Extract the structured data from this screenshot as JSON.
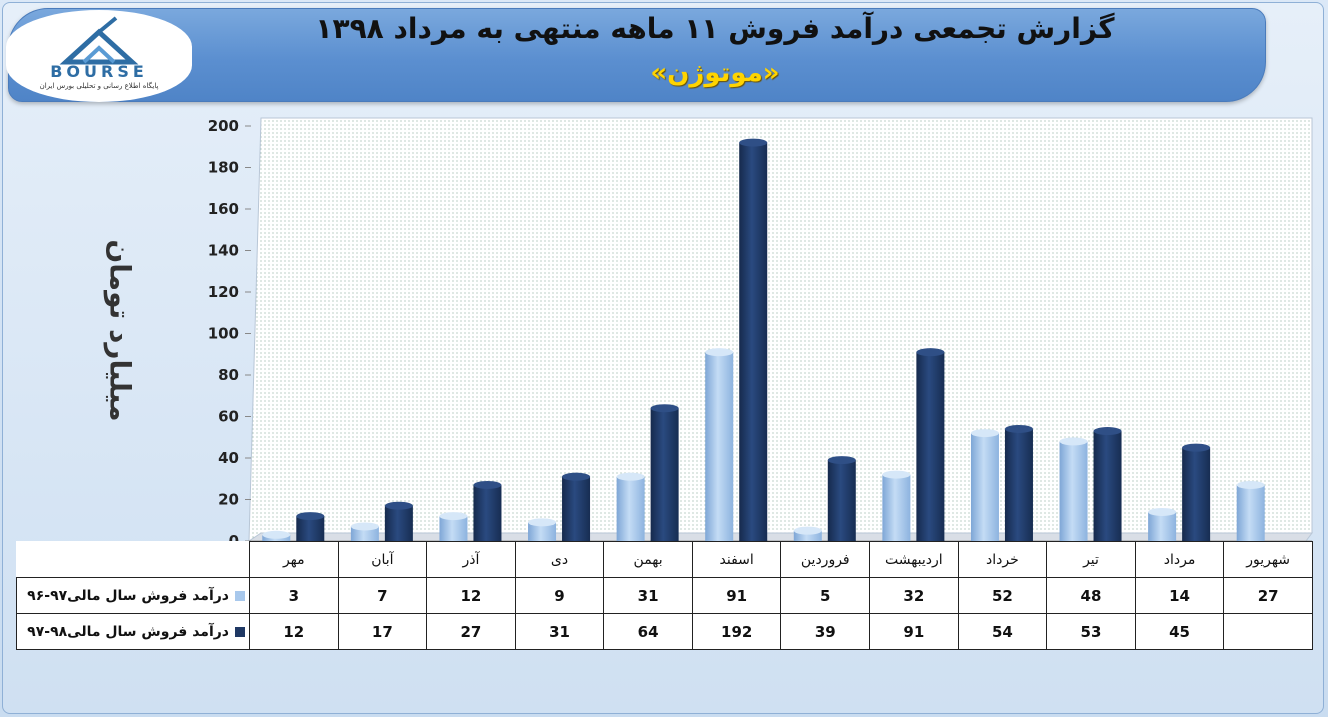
{
  "header": {
    "title": "گزارش تجمعی درآمد فروش ۱۱ ماهه منتهی به مرداد ۱۳۹۸",
    "subtitle": "«موتوژن»"
  },
  "logo": {
    "name": "BOURSE",
    "tagline": "پایگاه اطلاع رسانی و تحلیلی بورس ایران"
  },
  "chart_data": {
    "type": "bar",
    "title": "گزارش تجمعی درآمد فروش ۱۱ ماهه منتهی به مرداد ۱۳۹۸",
    "subtitle": "«موتوژن»",
    "ylabel": "میلیارد تومان",
    "ylim": [
      0,
      200
    ],
    "yticks": [
      0,
      20,
      40,
      60,
      80,
      100,
      120,
      140,
      160,
      180,
      200
    ],
    "grid": false,
    "legend": "table-left",
    "categories": [
      "مهر",
      "آبان",
      "آذر",
      "دی",
      "بهمن",
      "اسفند",
      "فروردین",
      "اردیبهشت",
      "خرداد",
      "تیر",
      "مرداد",
      "شهریور"
    ],
    "series": [
      {
        "name": "درآمد فروش سال مالی۹۷-۹۶",
        "color": "#a8c8ec",
        "values": [
          3,
          7,
          12,
          9,
          31,
          91,
          5,
          32,
          52,
          48,
          14,
          27
        ]
      },
      {
        "name": "درآمد فروش سال مالی۹۸-۹۷",
        "color": "#1f3864",
        "values": [
          12,
          17,
          27,
          31,
          64,
          192,
          39,
          91,
          54,
          53,
          45,
          null
        ]
      }
    ]
  }
}
